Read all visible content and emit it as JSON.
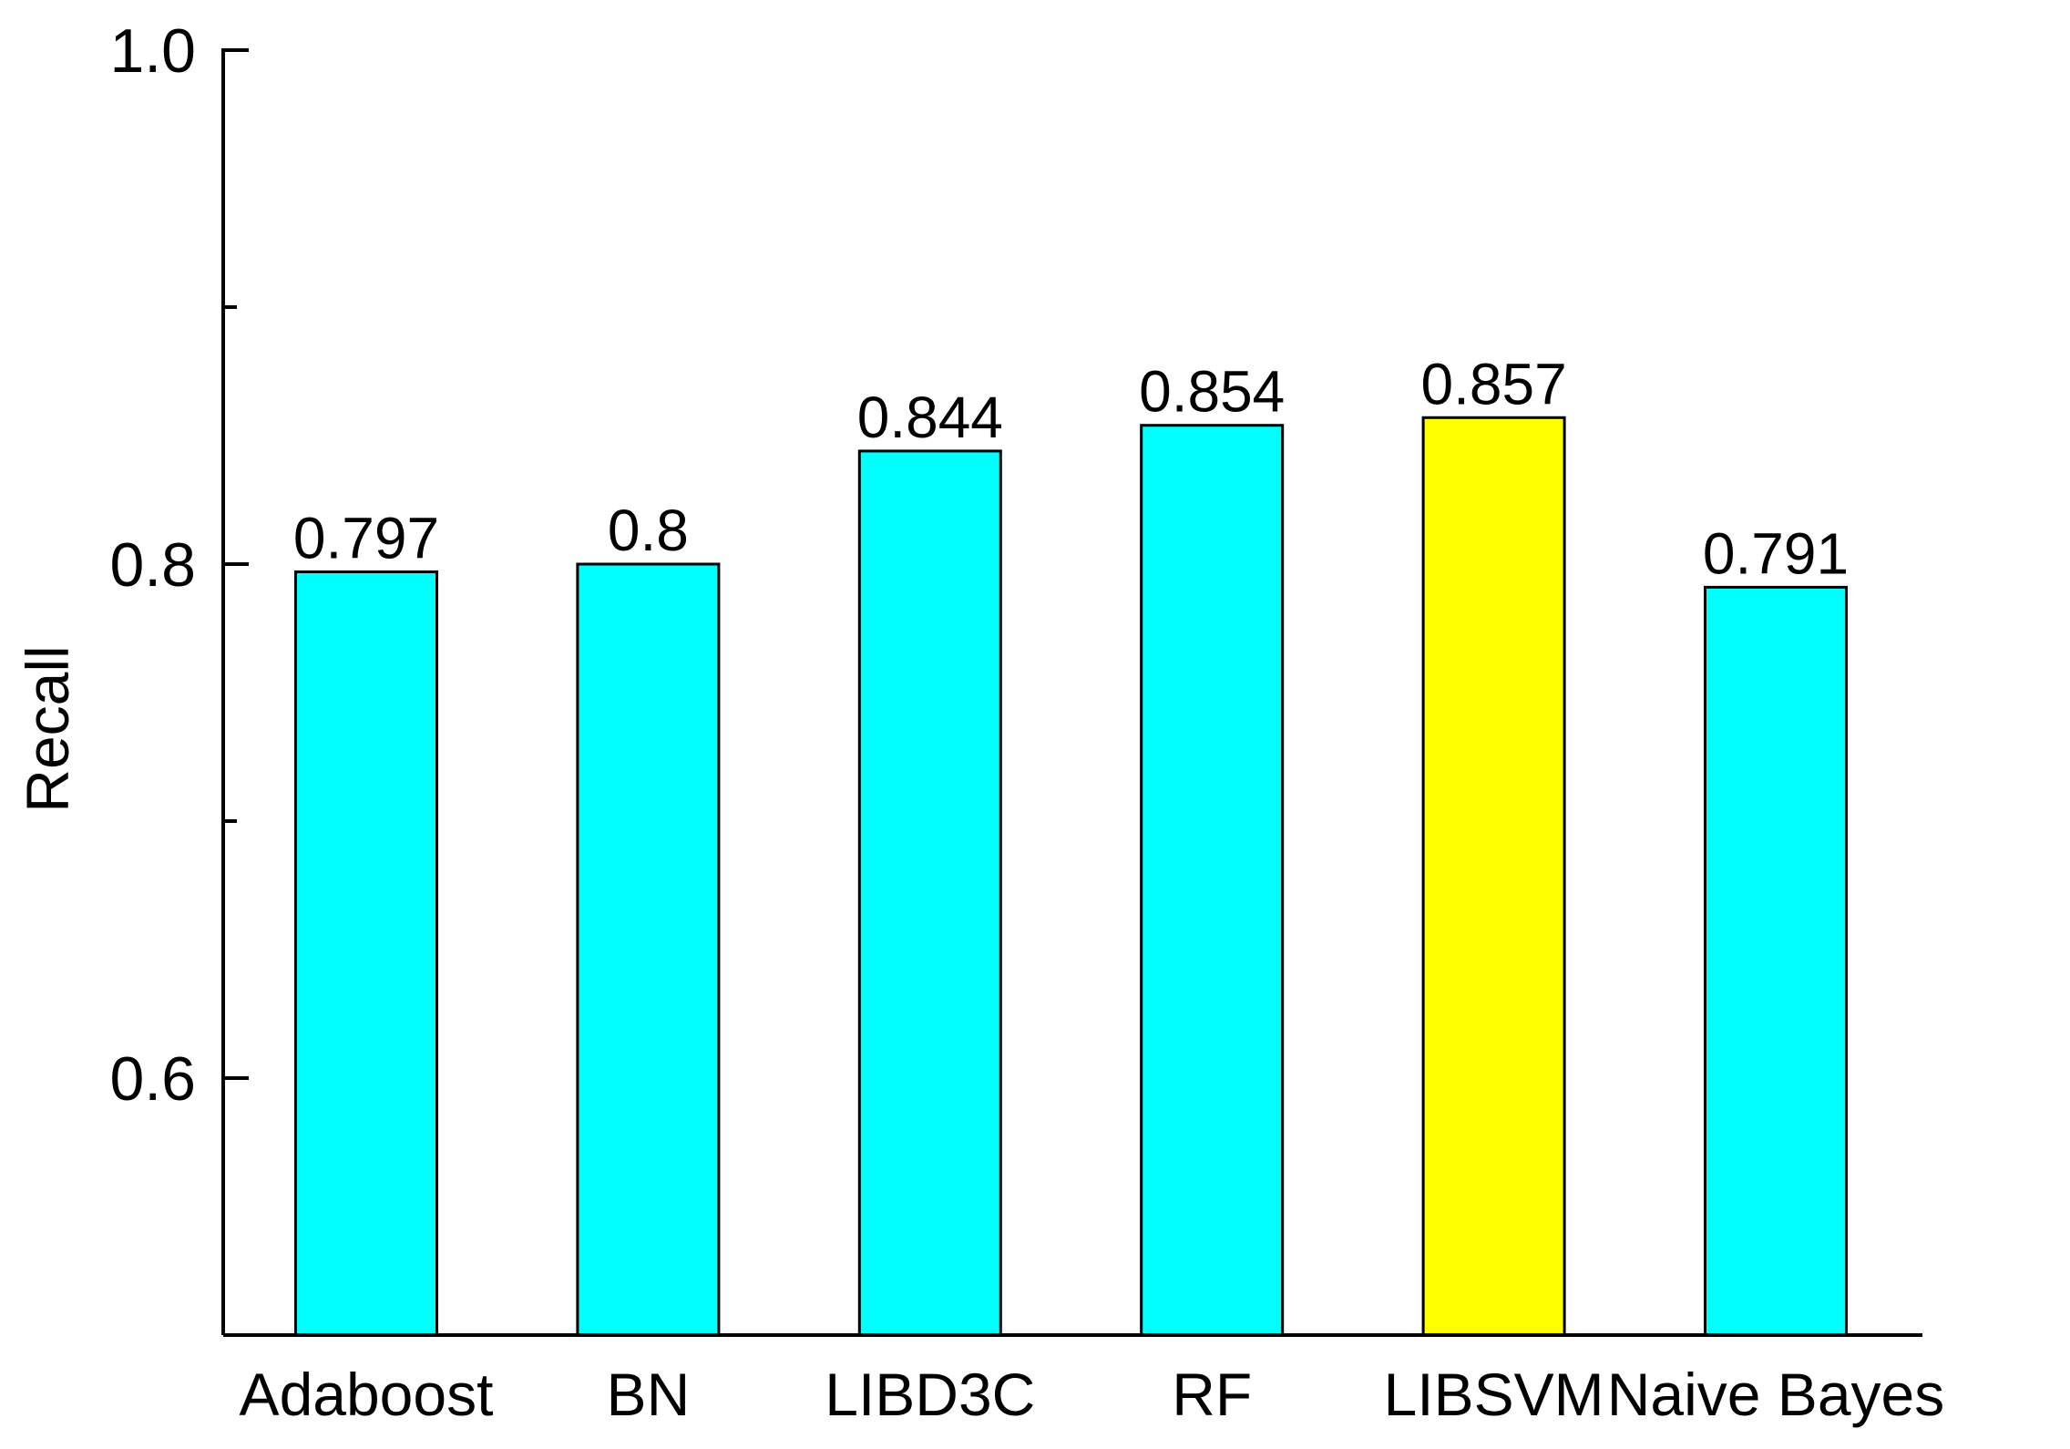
{
  "chart_data": {
    "type": "bar",
    "title": "",
    "xlabel": "",
    "ylabel": "Recall",
    "ylim": [
      0.5,
      1.0
    ],
    "yticks": [
      0.6,
      0.8,
      1.0
    ],
    "ytick_labels": [
      "0.6",
      "0.8",
      "1.0"
    ],
    "minor_yticks": [
      0.7,
      0.9
    ],
    "grid": false,
    "legend": "none",
    "categories": [
      "Adaboost",
      "BN",
      "LIBD3C",
      "RF",
      "LIBSVM",
      "Naive Bayes"
    ],
    "values": [
      0.797,
      0.8,
      0.844,
      0.854,
      0.857,
      0.791
    ],
    "data_labels": [
      "0.797",
      "0.8",
      "0.844",
      "0.854",
      "0.857",
      "0.791"
    ],
    "bar_colors": [
      "#00ffff",
      "#00ffff",
      "#00ffff",
      "#00ffff",
      "#ffff00",
      "#00ffff"
    ],
    "edge_color": "#000000"
  }
}
